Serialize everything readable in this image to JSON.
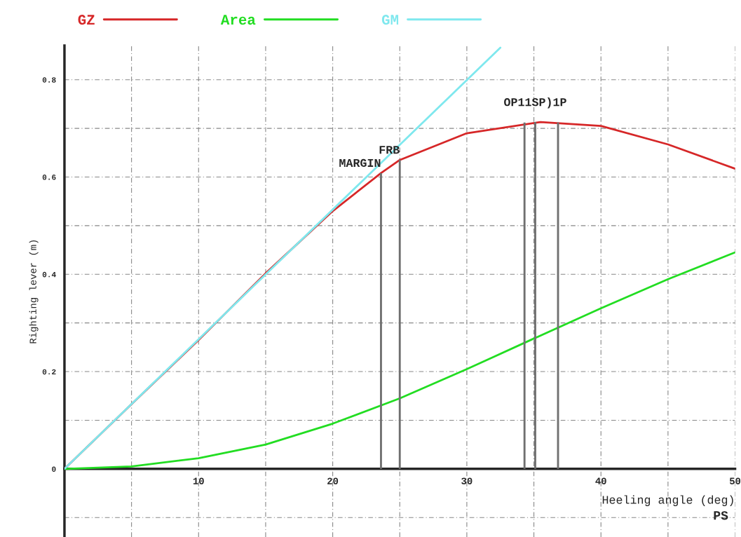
{
  "chart_data": {
    "type": "line",
    "xlabel": "Heeling angle (deg)",
    "ylabel": "Righting lever (m)",
    "xlim": [
      0,
      50
    ],
    "ylim": [
      -0.14,
      0.87
    ],
    "xticks": [
      {
        "value": 0,
        "label": null
      },
      {
        "value": 5,
        "label": null
      },
      10,
      {
        "value": 15,
        "label": null
      },
      20,
      {
        "value": 25,
        "label": null
      },
      30,
      {
        "value": 35,
        "label": null
      },
      40,
      {
        "value": 45,
        "label": null
      },
      50
    ],
    "yticks": [
      {
        "value": -0.1,
        "label": null
      },
      0,
      {
        "value": 0.1,
        "label": null
      },
      0.2,
      {
        "value": 0.3,
        "label": null
      },
      0.4,
      {
        "value": 0.5,
        "label": null
      },
      0.6,
      {
        "value": 0.7,
        "label": null
      },
      0.8
    ],
    "grid": true,
    "legend": "top",
    "line_style": "solid",
    "marker": "none",
    "series": [
      {
        "name": "GZ",
        "color": "#d62728",
        "x": [
          0,
          5,
          10,
          15,
          20,
          23.6,
          25,
          30,
          35.5,
          40,
          45,
          50
        ],
        "values": [
          0,
          0.133,
          0.265,
          0.402,
          0.53,
          0.608,
          0.635,
          0.69,
          0.713,
          0.705,
          0.667,
          0.617
        ]
      },
      {
        "name": "Area",
        "color": "#22dd22",
        "x": [
          0,
          5,
          10,
          15,
          20,
          25,
          30,
          35,
          40,
          45,
          50
        ],
        "values": [
          0,
          0.005,
          0.022,
          0.05,
          0.093,
          0.145,
          0.205,
          0.268,
          0.33,
          0.39,
          0.445
        ]
      },
      {
        "name": "GM",
        "color": "#7fe8ee",
        "x": [
          0,
          32.5
        ],
        "values": [
          0,
          0.866
        ]
      },
      {
        "type": "bar",
        "color": "#707070",
        "x": [
          23.6,
          25,
          34.3,
          35.1,
          36.8
        ],
        "values": [
          0.608,
          0.635,
          0.712,
          0.713,
          0.712
        ]
      }
    ],
    "annotations": [
      {
        "text": "MARGIN",
        "x": 23.6,
        "y": 0.608
      },
      {
        "text": "FRB",
        "x": 25,
        "y": 0.635
      },
      {
        "text": "OP11SP)1P",
        "x": 35.1,
        "y": 0.713
      },
      "PS"
    ]
  }
}
